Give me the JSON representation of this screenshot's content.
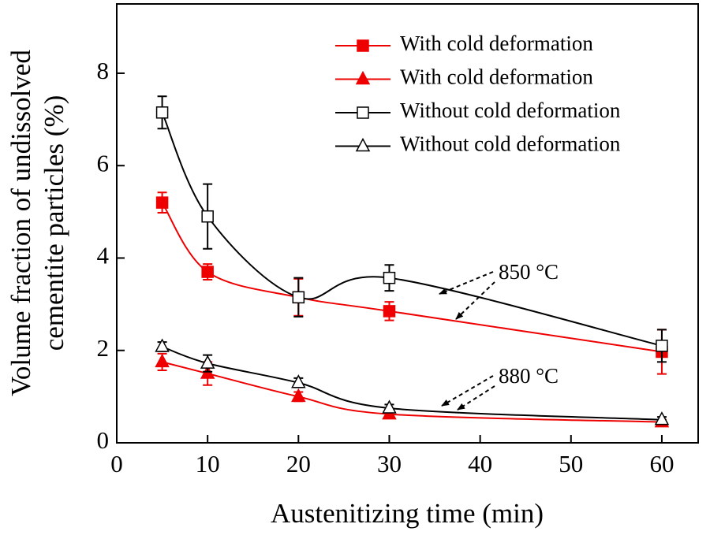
{
  "chart_data": {
    "type": "line",
    "xlabel": "Austenitizing time (min)",
    "ylabel": [
      "Volume fraction of undissolved",
      "cementite particles (%)"
    ],
    "x": [
      5,
      10,
      20,
      30,
      60
    ],
    "xlim": [
      0,
      64
    ],
    "xticks": [
      0,
      10,
      20,
      30,
      40,
      50,
      60
    ],
    "ylim": [
      0,
      9.5
    ],
    "yticks": [
      0,
      2,
      4,
      6,
      8
    ],
    "legend": "upper right",
    "series": [
      {
        "name": "With cold deformation",
        "color": "#ee0000",
        "marker": "square",
        "filled": true,
        "values": [
          5.2,
          3.7,
          3.15,
          2.85,
          1.97
        ],
        "errors": [
          0.22,
          0.17,
          0.4,
          0.2,
          0.48
        ]
      },
      {
        "name": "With cold deformation",
        "color": "#ee0000",
        "marker": "triangle",
        "filled": true,
        "values": [
          1.75,
          1.5,
          1.0,
          0.62,
          0.45
        ],
        "errors": [
          0.18,
          0.25,
          0.1,
          0.08,
          0.05
        ]
      },
      {
        "name": "Without cold deformation",
        "color": "#000000",
        "marker": "square",
        "filled": false,
        "values": [
          7.15,
          4.9,
          3.15,
          3.57,
          2.1
        ],
        "errors": [
          0.35,
          0.7,
          0.42,
          0.28,
          0.35
        ]
      },
      {
        "name": "Without cold deformation",
        "color": "#000000",
        "marker": "triangle",
        "filled": false,
        "values": [
          2.08,
          1.72,
          1.3,
          0.75,
          0.5
        ],
        "errors": [
          0.1,
          0.18,
          0.1,
          0.08,
          0.06
        ]
      }
    ],
    "annotations": [
      "850 °C",
      "880 °C"
    ]
  }
}
